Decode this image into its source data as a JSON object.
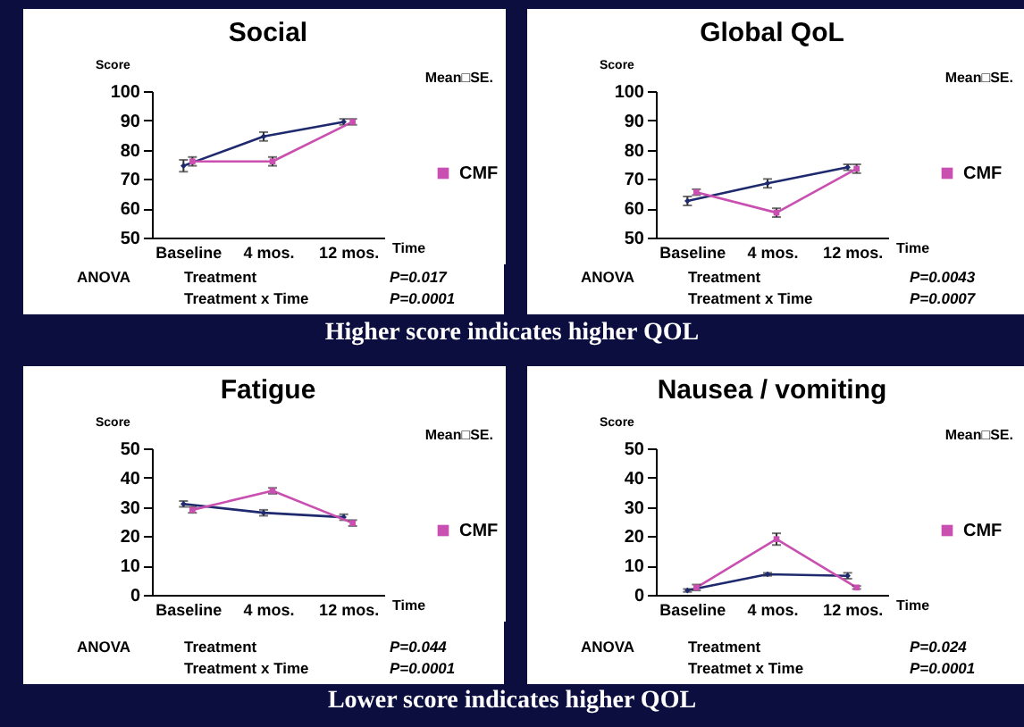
{
  "chart_data": [
    {
      "type": "line",
      "title": "Social",
      "ylabel": "Score",
      "xlabel": "Time",
      "categories": [
        "Baseline",
        "4 mos.",
        "12 mos."
      ],
      "ylim": [
        50,
        100
      ],
      "yticks": [
        50,
        60,
        70,
        80,
        90,
        100
      ],
      "grid": false,
      "legend": "right",
      "series": [
        {
          "color": "#1f2a6e",
          "marker": "diamond",
          "values": [
            74.5,
            84.5,
            89.5
          ],
          "errors": [
            2,
            1.5,
            1
          ]
        },
        {
          "name": "CMF",
          "color": "#c94fb0",
          "marker": "square",
          "values": [
            76,
            76,
            89.5
          ],
          "errors": [
            1.5,
            1.5,
            1
          ]
        }
      ],
      "annotations": [
        "Mean□SE.",
        "ANOVA",
        "Treatment",
        "P=0.017",
        "Treatment x Time",
        "P=0.0001",
        "Higher score indicates higher QOL"
      ]
    },
    {
      "type": "line",
      "title": "Global QoL",
      "ylabel": "Score",
      "xlabel": "Time",
      "categories": [
        "Baseline",
        "4 mos.",
        "12 mos."
      ],
      "ylim": [
        50,
        100
      ],
      "yticks": [
        50,
        60,
        70,
        80,
        90,
        100
      ],
      "grid": false,
      "legend": "right",
      "series": [
        {
          "color": "#1f2a6e",
          "marker": "diamond",
          "values": [
            62.5,
            68.5,
            74
          ],
          "errors": [
            1.5,
            1.5,
            1
          ]
        },
        {
          "name": "CMF",
          "color": "#c94fb0",
          "marker": "square",
          "values": [
            65.5,
            58.5,
            73.5
          ],
          "errors": [
            1,
            1.5,
            1.5
          ]
        }
      ],
      "annotations": [
        "Mean□SE.",
        "ANOVA",
        "Treatment",
        "P=0.0043",
        "Treatment x Time",
        "P=0.0007"
      ]
    },
    {
      "type": "line",
      "title": "Fatigue",
      "ylabel": "Score",
      "xlabel": "Time",
      "categories": [
        "Baseline",
        "4 mos.",
        "12 mos."
      ],
      "ylim": [
        0,
        50
      ],
      "yticks": [
        0,
        10,
        20,
        30,
        40,
        50
      ],
      "grid": false,
      "legend": "right",
      "series": [
        {
          "color": "#1f2a6e",
          "marker": "diamond",
          "values": [
            31,
            28,
            26.5
          ],
          "errors": [
            1,
            1,
            1
          ]
        },
        {
          "name": "CMF",
          "color": "#c94fb0",
          "marker": "square",
          "values": [
            29,
            35.5,
            24.5
          ],
          "errors": [
            1,
            1,
            1
          ]
        }
      ],
      "annotations": [
        "Mean□SE.",
        "ANOVA",
        "Treatment",
        "P=0.044",
        "Treatment x Time",
        "P=0.0001",
        "Lower score indicates higher QOL"
      ]
    },
    {
      "type": "line",
      "title": "Nausea / vomiting",
      "ylabel": "Score",
      "xlabel": "Time",
      "categories": [
        "Baseline",
        "4 mos.",
        "12 mos."
      ],
      "ylim": [
        0,
        50
      ],
      "yticks": [
        0,
        10,
        20,
        30,
        40,
        50
      ],
      "grid": false,
      "legend": "right",
      "series": [
        {
          "color": "#1f2a6e",
          "marker": "diamond",
          "values": [
            1.5,
            7,
            6.5
          ],
          "errors": [
            0.5,
            0.5,
            1
          ]
        },
        {
          "name": "CMF",
          "color": "#c94fb0",
          "marker": "square",
          "values": [
            2.5,
            19,
            2.5
          ],
          "errors": [
            1,
            2,
            0.5
          ]
        }
      ],
      "annotations": [
        "Mean□SE.",
        "ANOVA",
        "Treatment",
        "P=0.024",
        "Treatmet x Time",
        "P=0.0001"
      ]
    }
  ]
}
